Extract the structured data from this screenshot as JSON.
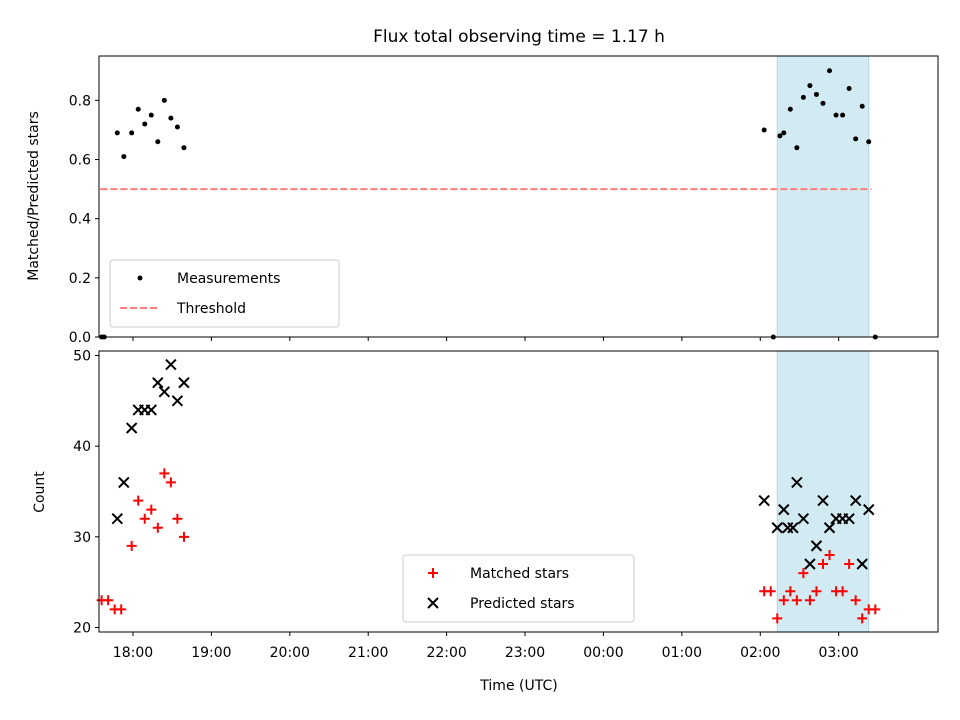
{
  "chart_data": [
    {
      "type": "scatter",
      "title": "Flux total observing time = 1.17 h",
      "xlabel": "",
      "ylabel": "Matched/Predicted stars",
      "ylim": [
        0,
        0.95
      ],
      "yticks": [
        "0.0",
        "0.2",
        "0.4",
        "0.6",
        "0.8"
      ],
      "ytick_values": [
        0,
        0.2,
        0.4,
        0.6,
        0.8
      ],
      "xlim": [
        "17:34",
        "04:16"
      ],
      "shaded_span": {
        "start": "02:13",
        "end": "03:23",
        "color": "#add8e6"
      },
      "threshold": {
        "name": "Threshold",
        "value": 0.5,
        "start": "17:35",
        "end": "03:25",
        "color": "#ff7f7f"
      },
      "legend_position": "lower left",
      "series": [
        {
          "name": "Measurements",
          "color": "#000000",
          "marker": "dot",
          "x": [
            "17:36",
            "17:38",
            "17:48",
            "17:53",
            "17:59",
            "18:04",
            "18:09",
            "18:14",
            "18:19",
            "18:24",
            "18:29",
            "18:34",
            "18:39",
            "02:03",
            "02:10",
            "02:15",
            "02:18",
            "02:23",
            "02:28",
            "02:33",
            "02:38",
            "02:43",
            "02:48",
            "02:53",
            "02:58",
            "03:03",
            "03:08",
            "03:13",
            "03:18",
            "03:23",
            "03:28"
          ],
          "y": [
            0.0,
            0.0,
            0.69,
            0.61,
            0.69,
            0.77,
            0.72,
            0.75,
            0.66,
            0.8,
            0.74,
            0.71,
            0.64,
            0.7,
            0.0,
            0.68,
            0.69,
            0.77,
            0.64,
            0.81,
            0.85,
            0.82,
            0.79,
            0.9,
            0.75,
            0.75,
            0.84,
            0.67,
            0.78,
            0.66,
            0.0
          ]
        }
      ]
    },
    {
      "type": "scatter",
      "title": "",
      "xlabel": "Time (UTC)",
      "ylabel": "Count",
      "ylim": [
        19.5,
        50.5
      ],
      "yticks": [
        "20",
        "30",
        "40",
        "50"
      ],
      "ytick_values": [
        20,
        30,
        40,
        50
      ],
      "xlim": [
        "17:34",
        "04:16"
      ],
      "xticks": [
        "18:00",
        "19:00",
        "20:00",
        "21:00",
        "22:00",
        "23:00",
        "00:00",
        "01:00",
        "02:00",
        "03:00"
      ],
      "shaded_span": {
        "start": "02:13",
        "end": "03:23",
        "color": "#add8e6"
      },
      "legend_position": "lower center",
      "series": [
        {
          "name": "Matched stars",
          "color": "#ff0000",
          "marker": "plus",
          "x": [
            "17:36",
            "17:41",
            "17:46",
            "17:51",
            "17:59",
            "18:04",
            "18:09",
            "18:14",
            "18:19",
            "18:24",
            "18:29",
            "18:34",
            "18:39",
            "02:03",
            "02:08",
            "02:13",
            "02:18",
            "02:23",
            "02:28",
            "02:33",
            "02:38",
            "02:43",
            "02:48",
            "02:53",
            "02:58",
            "03:03",
            "03:08",
            "03:13",
            "03:18",
            "03:23",
            "03:28"
          ],
          "y": [
            23,
            23,
            22,
            22,
            29,
            34,
            32,
            33,
            31,
            37,
            36,
            32,
            30,
            24,
            24,
            21,
            23,
            24,
            23,
            26,
            23,
            24,
            27,
            28,
            24,
            24,
            27,
            23,
            21,
            22,
            22
          ]
        },
        {
          "name": "Predicted stars",
          "color": "#000000",
          "marker": "x",
          "x": [
            "17:48",
            "17:53",
            "17:59",
            "18:04",
            "18:09",
            "18:14",
            "18:19",
            "18:24",
            "18:29",
            "18:34",
            "18:39",
            "02:03",
            "02:13",
            "02:18",
            "02:21",
            "02:25",
            "02:28",
            "02:33",
            "02:38",
            "02:43",
            "02:48",
            "02:53",
            "02:58",
            "03:03",
            "03:08",
            "03:13",
            "03:18",
            "03:23"
          ],
          "y": [
            32,
            36,
            42,
            44,
            44,
            44,
            47,
            46,
            49,
            45,
            47,
            34,
            31,
            33,
            31,
            31,
            36,
            32,
            27,
            29,
            34,
            31,
            32,
            32,
            32,
            34,
            27,
            33
          ]
        }
      ]
    }
  ]
}
